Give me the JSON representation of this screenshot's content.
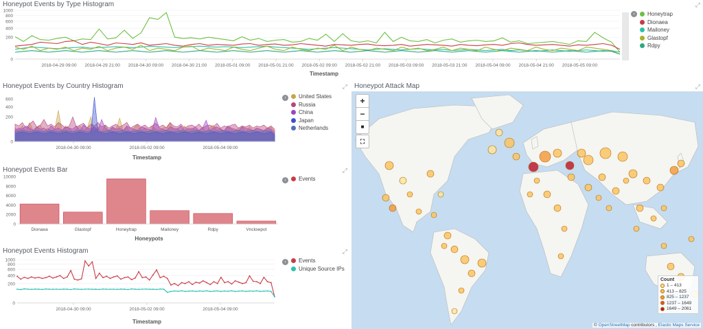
{
  "panels": {
    "type_hist": {
      "title": "Honeypot Events by Type Histogram",
      "xlabel": "Timestamp",
      "yticks": [
        "1000",
        "800",
        "600",
        "400",
        "200",
        "0"
      ],
      "xticks": [
        "2018-04-29 09:00",
        "2018-04-29 21:00",
        "2018-04-30 09:00",
        "2018-04-30 21:00",
        "2018-05-01 09:00",
        "2018-05-01 21:00",
        "2018-05-02 09:00",
        "2018-05-02 21:00",
        "2018-05-03 09:00",
        "2018-05-03 21:00",
        "2018-05-04 09:00",
        "2018-05-04 21:00",
        "2018-05-05 09:00"
      ]
    },
    "country_hist": {
      "title": "Honeypot Events by Country Histogram",
      "xlabel": "Timestamp",
      "yticks": [
        "600",
        "400",
        "200",
        "0"
      ],
      "xticks": [
        "2018-04-30 09:00",
        "2018-05-02 09:00",
        "2018-05-04 09:00"
      ]
    },
    "events_bar": {
      "title": "Honeypot Events Bar",
      "xlabel": "Honeypots",
      "yticks": [
        "10000",
        "8000",
        "6000",
        "4000",
        "2000",
        "0"
      ]
    },
    "events_hist": {
      "title": "Honeypot Events Histogram",
      "xlabel": "Timestamp",
      "yticks": [
        "1000",
        "800",
        "600",
        "400",
        "200",
        "0"
      ],
      "xticks": [
        "2018-04-30 09:00",
        "2018-05-02 09:00",
        "2018-05-04 09:00"
      ]
    },
    "attack_map": {
      "title": "Honeypot Attack Map",
      "zoom_in": "+",
      "zoom_out": "−",
      "legend_title": "Count",
      "legend_items": [
        {
          "label": "1 – 413",
          "color": "#fde59b"
        },
        {
          "label": "413 – 825",
          "color": "#fbc35e"
        },
        {
          "label": "825 – 1237",
          "color": "#f49a3c"
        },
        {
          "label": "1237 – 1649",
          "color": "#e5512e"
        },
        {
          "label": "1649 – 2061",
          "color": "#c0162b"
        }
      ],
      "attribution_prefix": "©",
      "attribution_osm": "OpenStreetMap",
      "attribution_mid": "contributors ,",
      "attribution_ems": "Elastic Maps Service"
    }
  },
  "legends": {
    "types": [
      {
        "label": "Honeytrap",
        "color": "#6dc040"
      },
      {
        "label": "Dionaea",
        "color": "#c93b45"
      },
      {
        "label": "Mailoney",
        "color": "#2cc1a8"
      },
      {
        "label": "Glastopf",
        "color": "#a2b52a"
      },
      {
        "label": "Rdpy",
        "color": "#2aa884"
      }
    ],
    "countries": [
      {
        "label": "United States",
        "color": "#c9a64a"
      },
      {
        "label": "Russia",
        "color": "#b8457a"
      },
      {
        "label": "China",
        "color": "#9b44c4"
      },
      {
        "label": "Japan",
        "color": "#3f4fd0"
      },
      {
        "label": "Netherlands",
        "color": "#5470b8"
      }
    ],
    "bar": [
      {
        "label": "Events",
        "color": "#c93b45"
      }
    ],
    "events": [
      {
        "label": "Events",
        "color": "#c93b45"
      },
      {
        "label": "Unique Source IPs",
        "color": "#2cc1b5"
      }
    ]
  },
  "chart_data": [
    {
      "type": "line",
      "title": "Honeypot Events by Type Histogram",
      "xlabel": "Timestamp",
      "ylabel": "",
      "y_scale": "sqrt",
      "ylim": [
        0,
        1000
      ],
      "x_start": "2018-04-28 09:00",
      "x_step_hours": 3,
      "series": [
        {
          "name": "Honeytrap",
          "values": [
            210,
            130,
            230,
            160,
            150,
            180,
            200,
            140,
            170,
            160,
            380,
            170,
            190,
            350,
            180,
            290,
            720,
            660,
            910,
            200,
            180,
            190,
            170,
            200,
            180,
            160,
            140,
            210,
            150,
            180,
            130,
            150,
            160,
            120,
            130,
            180,
            150,
            260,
            130,
            270,
            140,
            120,
            140,
            110,
            300,
            130,
            200,
            140,
            130,
            160,
            110,
            150,
            170,
            120,
            140,
            150,
            130,
            140,
            190,
            120,
            140,
            100,
            110,
            120,
            130,
            110,
            90,
            140,
            130,
            300,
            190,
            120,
            20
          ]
        },
        {
          "name": "Dionaea",
          "values": [
            70,
            80,
            90,
            120,
            110,
            100,
            130,
            140,
            90,
            120,
            100,
            80,
            110,
            100,
            90,
            110,
            80,
            90,
            100,
            80,
            70,
            90,
            100,
            80,
            90,
            85,
            80,
            95,
            100,
            80,
            90,
            95,
            80,
            85,
            100,
            90,
            80,
            70,
            90,
            85,
            80,
            90,
            95,
            80,
            75,
            80,
            90,
            70,
            80,
            90,
            85,
            80,
            70,
            90,
            80,
            75,
            85,
            90,
            80,
            100,
            110,
            90,
            80,
            85,
            90,
            80,
            70,
            85,
            80,
            90,
            100,
            80,
            40
          ]
        },
        {
          "name": "Mailoney",
          "values": [
            40,
            50,
            60,
            55,
            50,
            45,
            50,
            55,
            60,
            50,
            55,
            60,
            65,
            60,
            55,
            60,
            70,
            65,
            60,
            55,
            60,
            65,
            70,
            65,
            60,
            65,
            60,
            55,
            60,
            65,
            70,
            60,
            55,
            50,
            45,
            40,
            45,
            50,
            55,
            50,
            45,
            40,
            35,
            40,
            45,
            40,
            35,
            40,
            45,
            40,
            35,
            40,
            30,
            35,
            40,
            35,
            30,
            35,
            40,
            30,
            35,
            30,
            25,
            30,
            35,
            30,
            25,
            30,
            35,
            30,
            25,
            30,
            20
          ]
        },
        {
          "name": "Glastopf",
          "values": [
            60,
            40,
            70,
            30,
            50,
            40,
            60,
            30,
            50,
            40,
            70,
            30,
            50,
            60,
            40,
            80,
            30,
            50,
            40,
            30,
            60,
            70,
            30,
            50,
            40,
            30,
            60,
            40,
            30,
            50,
            70,
            40,
            30,
            60,
            40,
            30,
            50,
            40,
            80,
            30,
            60,
            40,
            30,
            50,
            40,
            30,
            60,
            40,
            50,
            30,
            40,
            60,
            30,
            50,
            40,
            30,
            60,
            40,
            30,
            50,
            40,
            30,
            60,
            40,
            30,
            50,
            40,
            30,
            60,
            50,
            40,
            30,
            10
          ]
        },
        {
          "name": "Rdpy",
          "values": [
            20,
            25,
            30,
            25,
            20,
            25,
            30,
            25,
            20,
            25,
            30,
            25,
            20,
            25,
            30,
            25,
            20,
            25,
            30,
            25,
            20,
            25,
            30,
            25,
            20,
            25,
            30,
            25,
            20,
            25,
            30,
            25,
            20,
            25,
            30,
            25,
            20,
            25,
            30,
            25,
            20,
            25,
            30,
            25,
            20,
            25,
            30,
            25,
            20,
            25,
            30,
            25,
            20,
            25,
            30,
            25,
            20,
            25,
            30,
            25,
            20,
            25,
            30,
            25,
            20,
            25,
            30,
            25,
            20,
            25,
            30,
            25,
            10
          ]
        }
      ]
    },
    {
      "type": "area",
      "title": "Honeypot Events by Country Histogram",
      "xlabel": "Timestamp",
      "ylabel": "",
      "y_scale": "sqrt",
      "ylim": [
        0,
        700
      ],
      "x_start": "2018-04-28 09:00",
      "x_step_hours": 3,
      "series": [
        {
          "name": "United States",
          "values": [
            60,
            40,
            80,
            30,
            120,
            40,
            60,
            90,
            30,
            60,
            40,
            50,
            320,
            40,
            80,
            60,
            30,
            50,
            80,
            40,
            60,
            200,
            40,
            70,
            30,
            90,
            40,
            60,
            50,
            180,
            40,
            70,
            30,
            60,
            100,
            40,
            60,
            30,
            80,
            50,
            40,
            60,
            70,
            120,
            40,
            60,
            30,
            80,
            40,
            60,
            50,
            40,
            70,
            30,
            60,
            90,
            40,
            60,
            30,
            70,
            50,
            40,
            60,
            80,
            30,
            70,
            40,
            60,
            50,
            40,
            60,
            70,
            30
          ]
        },
        {
          "name": "Russia",
          "values": [
            100,
            80,
            120,
            60,
            100,
            140,
            70,
            90,
            160,
            80,
            100,
            70,
            120,
            90,
            60,
            80,
            200,
            70,
            90,
            110,
            60,
            100,
            80,
            120,
            70,
            90,
            60,
            80,
            100,
            70,
            90,
            120,
            60,
            80,
            100,
            70,
            90,
            60,
            80,
            110,
            70,
            90,
            60,
            120,
            80,
            70,
            100,
            60,
            80,
            90,
            70,
            100,
            60,
            80,
            90,
            70,
            110,
            60,
            80,
            70,
            90,
            100,
            60,
            80,
            70,
            90,
            60,
            80,
            70,
            90,
            60,
            80,
            50
          ]
        },
        {
          "name": "China",
          "values": [
            40,
            60,
            50,
            80,
            60,
            40,
            70,
            50,
            60,
            40,
            80,
            50,
            60,
            40,
            70,
            60,
            50,
            80,
            40,
            90,
            60,
            50,
            70,
            40,
            160,
            60,
            40,
            70,
            50,
            60,
            40,
            80,
            60,
            50,
            40,
            70,
            60,
            50,
            40,
            190,
            60,
            50,
            40,
            70,
            60,
            50,
            80,
            40,
            60,
            50,
            70,
            40,
            60,
            150,
            40,
            60,
            70,
            50,
            40,
            80,
            60,
            50,
            40,
            70,
            60,
            50,
            40,
            60,
            50,
            40,
            60,
            50,
            20
          ]
        },
        {
          "name": "Japan",
          "values": [
            20,
            25,
            30,
            25,
            20,
            25,
            30,
            25,
            20,
            25,
            30,
            25,
            20,
            25,
            30,
            25,
            20,
            25,
            30,
            25,
            20,
            25,
            650,
            30,
            25,
            20,
            25,
            30,
            25,
            20,
            25,
            30,
            25,
            20,
            25,
            30,
            25,
            20,
            25,
            30,
            25,
            20,
            25,
            30,
            25,
            20,
            25,
            30,
            25,
            20,
            25,
            30,
            25,
            20,
            25,
            30,
            25,
            20,
            25,
            30,
            25,
            20,
            25,
            30,
            25,
            20,
            25,
            30,
            25,
            20,
            25,
            30,
            10
          ]
        },
        {
          "name": "Netherlands",
          "values": [
            30,
            35,
            40,
            35,
            30,
            35,
            40,
            35,
            30,
            35,
            40,
            35,
            30,
            35,
            40,
            35,
            30,
            35,
            40,
            35,
            30,
            35,
            40,
            35,
            30,
            35,
            40,
            35,
            30,
            35,
            40,
            35,
            30,
            35,
            40,
            35,
            30,
            35,
            40,
            35,
            30,
            35,
            40,
            35,
            30,
            35,
            40,
            35,
            30,
            35,
            40,
            35,
            30,
            35,
            40,
            35,
            30,
            35,
            40,
            35,
            30,
            35,
            40,
            35,
            30,
            35,
            40,
            35,
            30,
            35,
            40,
            35,
            15
          ]
        }
      ]
    },
    {
      "type": "bar",
      "title": "Honeypot Events Bar",
      "xlabel": "Honeypots",
      "ylabel": "",
      "ylim": [
        0,
        10000
      ],
      "categories": [
        "Dionaea",
        "Glastopf",
        "Honeytrap",
        "Mailoney",
        "Rdpy",
        "Vnclowpot"
      ],
      "series": [
        {
          "name": "Events",
          "values": [
            4200,
            2500,
            9500,
            2800,
            2200,
            600
          ]
        }
      ]
    },
    {
      "type": "line",
      "title": "Honeypot Events Histogram",
      "xlabel": "Timestamp",
      "ylabel": "",
      "y_scale": "sqrt",
      "ylim": [
        0,
        1000
      ],
      "x_start": "2018-04-28 09:00",
      "x_step_hours": 3,
      "series": [
        {
          "name": "Events",
          "values": [
            380,
            300,
            350,
            320,
            360,
            330,
            350,
            320,
            340,
            380,
            330,
            360,
            400,
            320,
            360,
            560,
            300,
            280,
            310,
            940,
            730,
            900,
            320,
            470,
            340,
            380,
            320,
            360,
            390,
            300,
            340,
            360,
            290,
            330,
            520,
            340,
            360,
            280,
            420,
            580,
            340,
            380,
            320,
            170,
            200,
            160,
            220,
            200,
            240,
            180,
            230,
            210,
            260,
            220,
            180,
            240,
            200,
            350,
            220,
            240,
            190,
            260,
            230,
            200,
            220,
            390,
            250,
            240,
            200,
            350,
            240,
            220,
            20
          ]
        },
        {
          "name": "Unique Source IPs",
          "values": [
            100,
            95,
            105,
            100,
            98,
            102,
            100,
            97,
            103,
            100,
            99,
            101,
            98,
            102,
            100,
            96,
            104,
            100,
            98,
            101,
            102,
            99,
            100,
            97,
            103,
            100,
            99,
            101,
            98,
            102,
            100,
            96,
            104,
            100,
            98,
            101,
            102,
            99,
            100,
            97,
            103,
            100,
            60,
            70,
            75,
            72,
            78,
            70,
            74,
            76,
            70,
            75,
            72,
            78,
            70,
            74,
            76,
            70,
            75,
            72,
            78,
            70,
            74,
            76,
            70,
            75,
            72,
            78,
            70,
            74,
            76,
            70,
            20
          ]
        }
      ]
    }
  ]
}
